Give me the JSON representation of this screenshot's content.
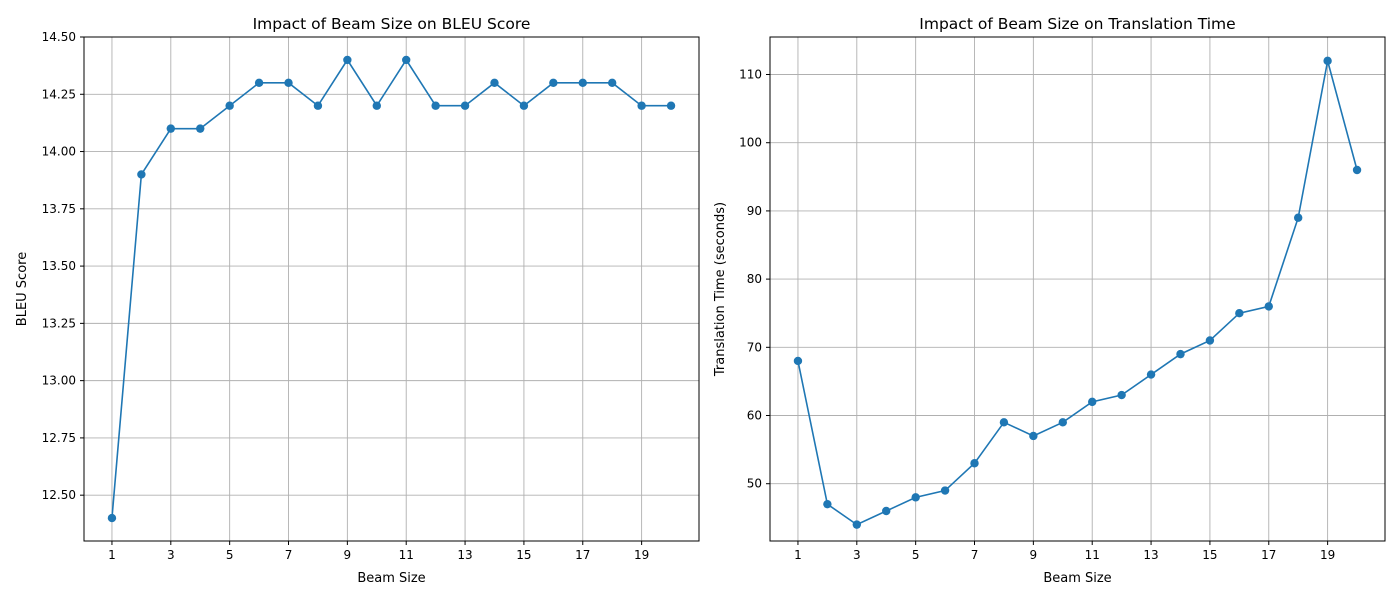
{
  "chart_data": [
    {
      "type": "line",
      "title": "Impact of Beam Size on BLEU Score",
      "xlabel": "Beam Size",
      "ylabel": "BLEU Score",
      "x": [
        1,
        2,
        3,
        4,
        5,
        6,
        7,
        8,
        9,
        10,
        11,
        12,
        13,
        14,
        15,
        16,
        17,
        18,
        19,
        20
      ],
      "series": [
        {
          "values": [
            12.4,
            13.9,
            14.1,
            14.1,
            14.2,
            14.3,
            14.3,
            14.2,
            14.4,
            14.2,
            14.4,
            14.2,
            14.2,
            14.3,
            14.2,
            14.3,
            14.3,
            14.3,
            14.2,
            14.2
          ]
        }
      ],
      "xticks": [
        "1",
        "3",
        "5",
        "7",
        "9",
        "11",
        "13",
        "15",
        "17",
        "19"
      ],
      "yticks": [
        "12.50",
        "12.75",
        "13.00",
        "13.25",
        "13.50",
        "13.75",
        "14.00",
        "14.25",
        "14.50"
      ],
      "xlim": [
        0.05,
        20.95
      ],
      "ylim": [
        12.3,
        14.5
      ],
      "grid": true,
      "marker": "circle",
      "color": "#1f77b4"
    },
    {
      "type": "line",
      "title": "Impact of Beam Size on Translation Time",
      "xlabel": "Beam Size",
      "ylabel": "Translation Time (seconds)",
      "x": [
        1,
        2,
        3,
        4,
        5,
        6,
        7,
        8,
        9,
        10,
        11,
        12,
        13,
        14,
        15,
        16,
        17,
        18,
        19,
        20
      ],
      "series": [
        {
          "values": [
            68,
            47,
            44,
            46,
            48,
            49,
            53,
            59,
            57,
            59,
            62,
            63,
            66,
            69,
            71,
            75,
            76,
            89,
            112,
            96
          ]
        }
      ],
      "xticks": [
        "1",
        "3",
        "5",
        "7",
        "9",
        "11",
        "13",
        "15",
        "17",
        "19"
      ],
      "yticks": [
        "50",
        "60",
        "70",
        "80",
        "90",
        "100",
        "110"
      ],
      "xlim": [
        0.05,
        20.95
      ],
      "ylim": [
        41.6,
        115.5
      ],
      "grid": true,
      "marker": "circle",
      "color": "#1f77b4"
    }
  ]
}
